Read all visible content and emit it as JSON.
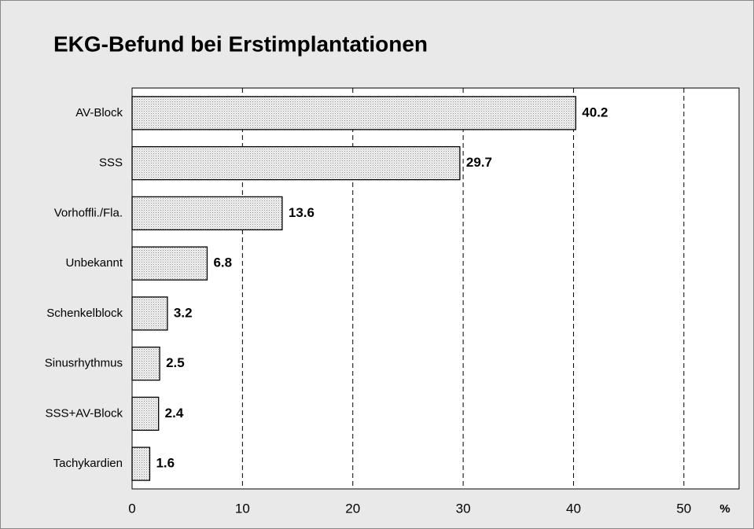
{
  "chart_data": {
    "type": "bar",
    "orientation": "horizontal",
    "title": "EKG-Befund bei Erstimplantationen",
    "categories": [
      "AV-Block",
      "SSS",
      "Vorhoffli./Fla.",
      "Unbekannt",
      "Schenkelblock",
      "Sinusrhythmus",
      "SSS+AV-Block",
      "Tachykardien"
    ],
    "values": [
      40.2,
      29.7,
      13.6,
      6.8,
      3.2,
      2.5,
      2.4,
      1.6
    ],
    "color": "#d9d9d9",
    "xlim": [
      0,
      55
    ],
    "xticks": [
      0,
      10,
      20,
      30,
      40,
      50
    ],
    "x_label": "%",
    "grid": true
  }
}
